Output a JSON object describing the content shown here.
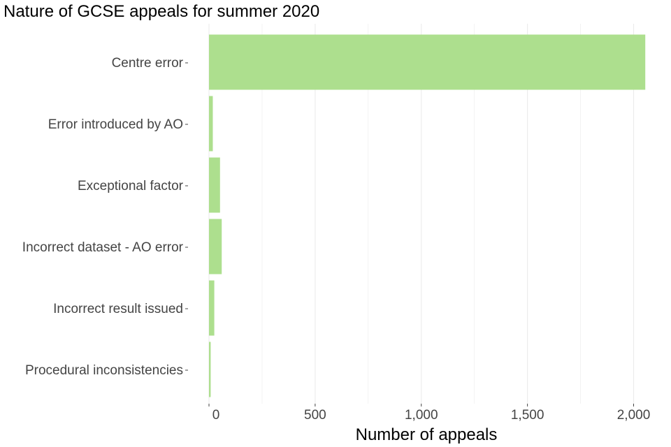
{
  "chart_data": {
    "type": "bar",
    "orientation": "horizontal",
    "title": "Nature of GCSE appeals for summer 2020",
    "xlabel": "Number of appeals",
    "ylabel": "",
    "categories": [
      "Centre error",
      "Error introduced by AO",
      "Exceptional factor",
      "Incorrect dataset - AO error",
      "Incorrect result issued",
      "Procedural inconsistencies"
    ],
    "values": [
      2055,
      18,
      52,
      60,
      25,
      8
    ],
    "xlim": [
      0,
      2100
    ],
    "x_ticks": [
      0,
      500,
      1000,
      1500,
      2000
    ],
    "x_tick_labels": [
      "0",
      "500",
      "1,000",
      "1,500",
      "2,000"
    ],
    "grid": "vertical",
    "legend": "none",
    "bar_color": "#addf8e",
    "grid_color": "#ebebeb"
  }
}
